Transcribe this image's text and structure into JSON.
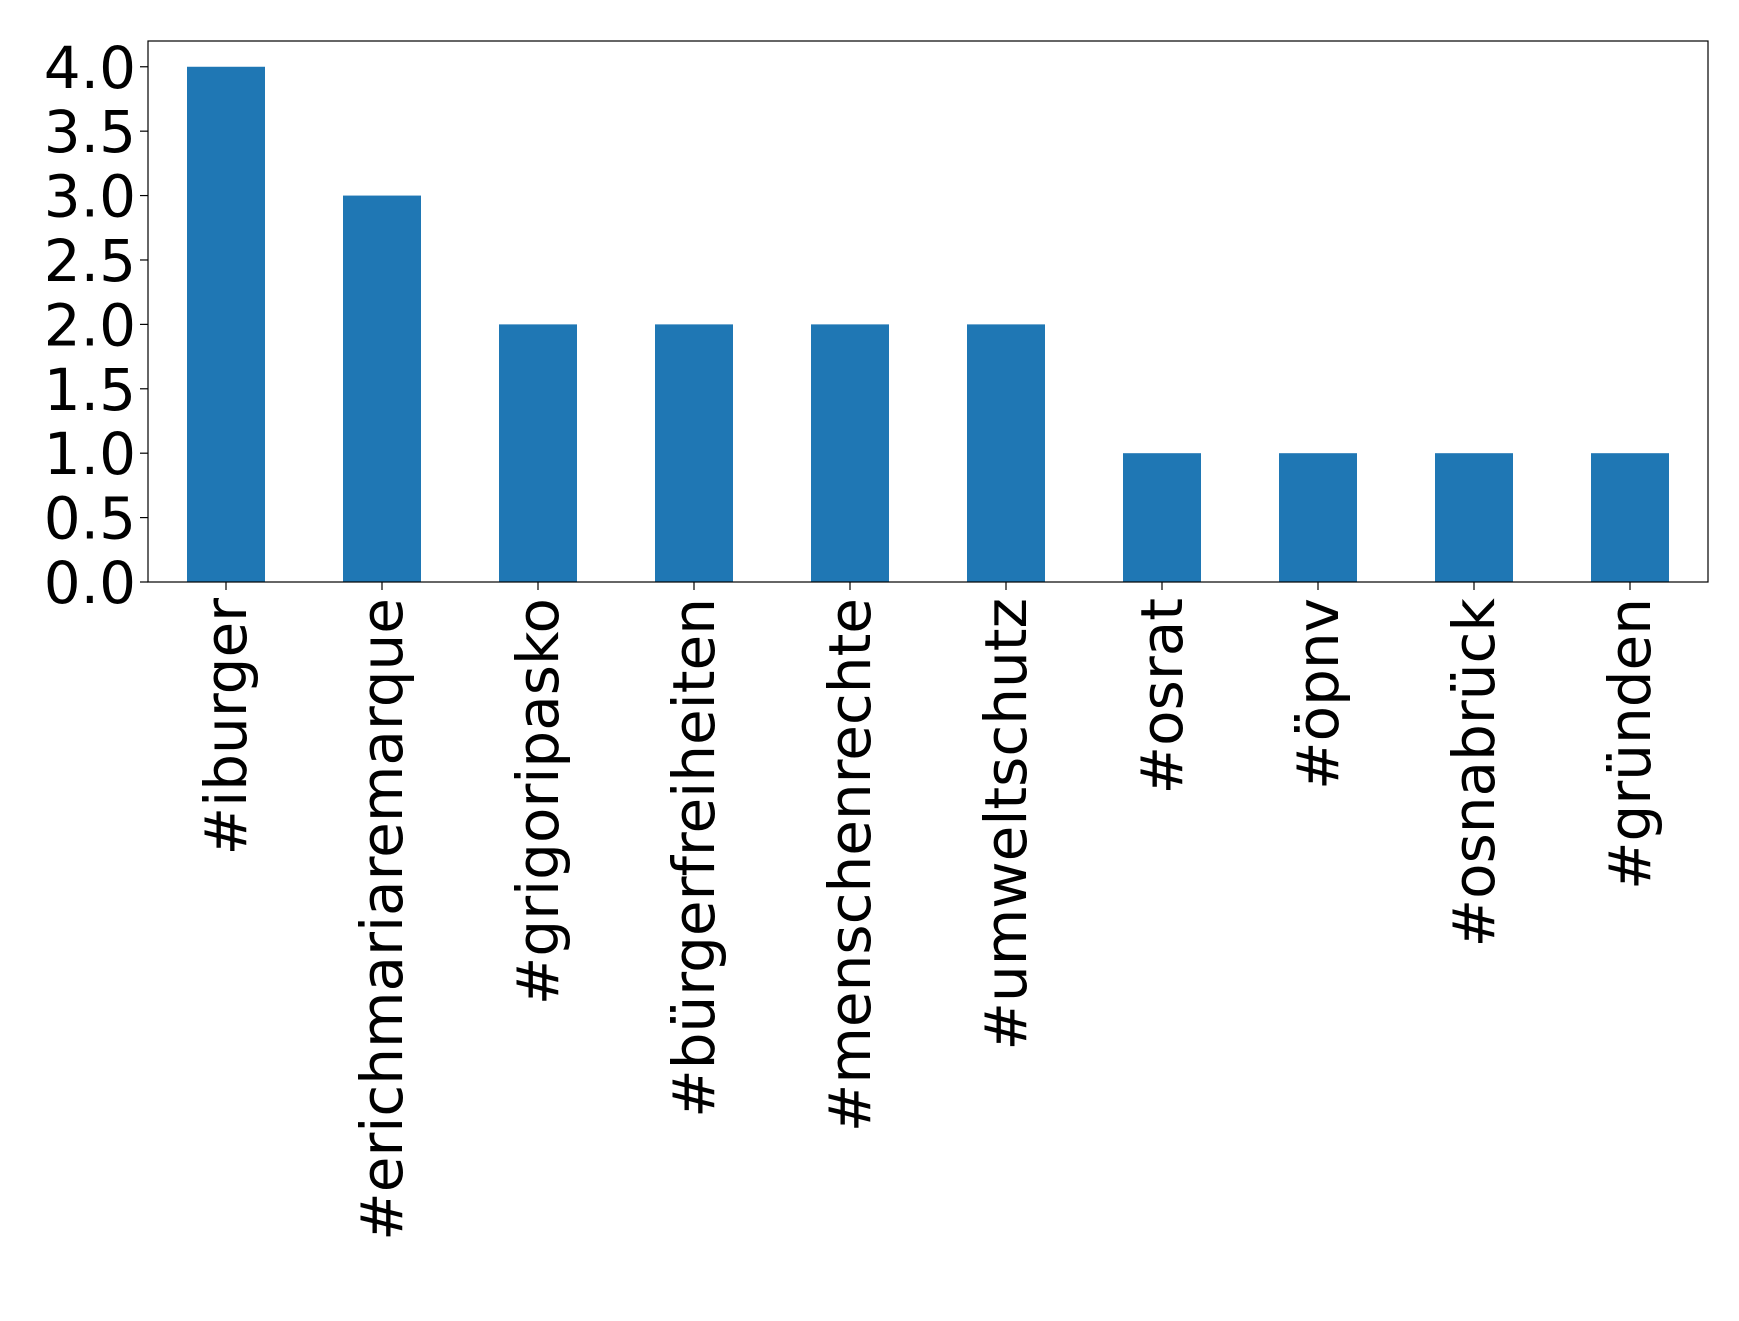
{
  "chart_data": {
    "type": "bar",
    "categories": [
      "#iburger",
      "#erichmariaremarque",
      "#grigoripasko",
      "#bürgerfreiheiten",
      "#menschenrechte",
      "#umweltschutz",
      "#osrat",
      "#öpnv",
      "#osnabrück",
      "#gründen"
    ],
    "values": [
      4,
      3,
      2,
      2,
      2,
      2,
      1,
      1,
      1,
      1
    ],
    "color": "#1f77b4",
    "ylim": [
      0,
      4.2
    ],
    "yticks": [
      {
        "value": 0,
        "label": "0.0"
      },
      {
        "value": 0.5,
        "label": "0.5"
      },
      {
        "value": 1,
        "label": "1.0"
      },
      {
        "value": 1.5,
        "label": "1.5"
      },
      {
        "value": 2,
        "label": "2.0"
      },
      {
        "value": 2.5,
        "label": "2.5"
      },
      {
        "value": 3,
        "label": "3.0"
      },
      {
        "value": 3.5,
        "label": "3.5"
      },
      {
        "value": 4,
        "label": "4.0"
      }
    ],
    "grid": false
  }
}
